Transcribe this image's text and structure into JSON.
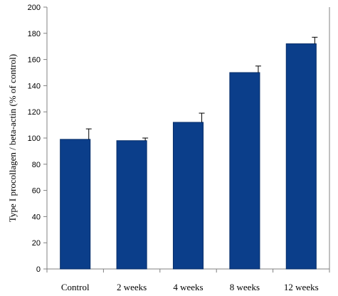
{
  "chart_data": {
    "type": "bar",
    "title": "",
    "xlabel": "",
    "ylabel": "Type I procollagen / beta-actin (% of control)",
    "categories": [
      "Control",
      "2 weeks",
      "4 weeks",
      "8 weeks",
      "12 weeks"
    ],
    "values": [
      99,
      98,
      112,
      150,
      172
    ],
    "error_upper": [
      8,
      2,
      7,
      5,
      5
    ],
    "ylim": [
      0,
      200
    ],
    "yticks": [
      0,
      20,
      40,
      60,
      80,
      100,
      120,
      140,
      160,
      180,
      200
    ],
    "grid": false,
    "legend": "none",
    "bar_color": "#0b3e8a",
    "axis_color": "#808080"
  }
}
